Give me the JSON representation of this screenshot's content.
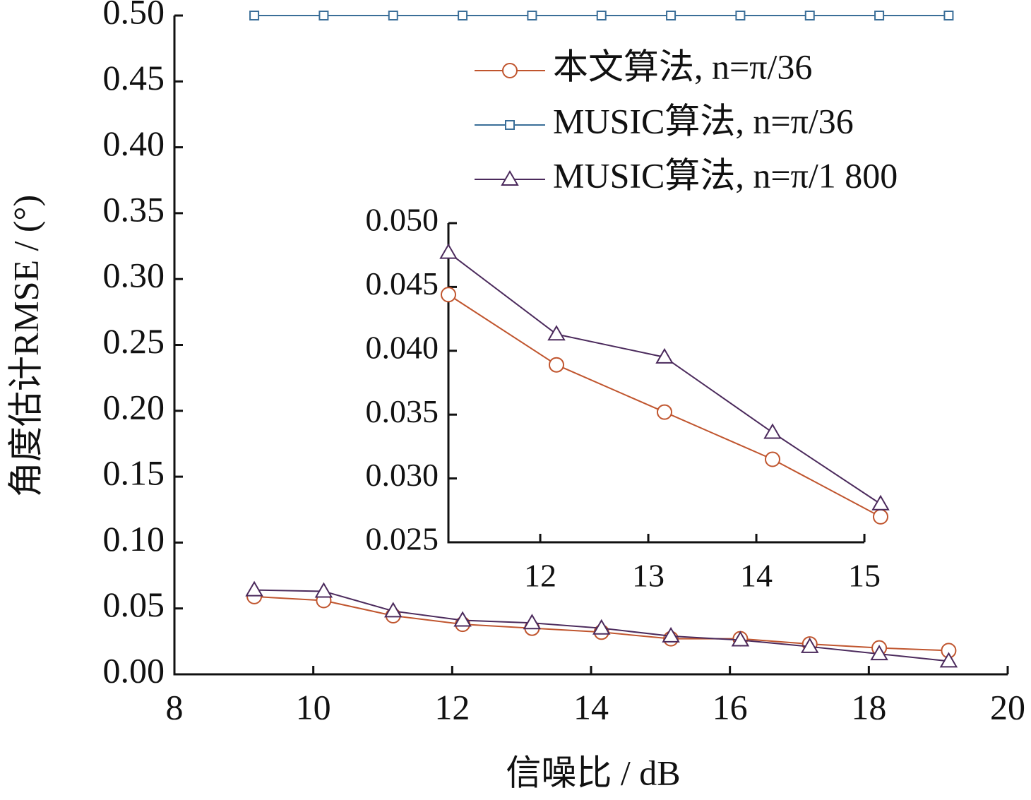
{
  "chart_data": [
    {
      "type": "line",
      "xlabel": "信噪比 / dB",
      "ylabel": "角度估计RMSE / (°)",
      "x": [
        9.15,
        10.15,
        11.15,
        12.15,
        13.15,
        14.15,
        15.15,
        16.15,
        17.15,
        18.15,
        19.15
      ],
      "xlim": [
        8,
        20
      ],
      "xticks": [
        8,
        10,
        12,
        14,
        16,
        18,
        20
      ],
      "ylim": [
        0,
        0.5
      ],
      "yticks": [
        {
          "value": 0,
          "label": "0.00"
        },
        {
          "value": 0.05,
          "label": "0.05"
        },
        {
          "value": 0.1,
          "label": "0.10"
        },
        {
          "value": 0.15,
          "label": "0.15"
        },
        {
          "value": 0.2,
          "label": "0.20"
        },
        {
          "value": 0.25,
          "label": "0.25"
        },
        {
          "value": 0.3,
          "label": "0.30"
        },
        {
          "value": 0.35,
          "label": "0.35"
        },
        {
          "value": 0.4,
          "label": "0.40"
        },
        {
          "value": 0.45,
          "label": "0.45"
        },
        {
          "value": 0.5,
          "label": "0.50"
        }
      ],
      "legend": "upper right",
      "series": [
        {
          "name": "本文算法, n=π/36",
          "color": "#c0552e",
          "marker": "circle",
          "values": [
            0.059,
            0.056,
            0.0445,
            0.038,
            0.035,
            0.032,
            0.027,
            0.027,
            0.023,
            0.02,
            0.018
          ]
        },
        {
          "name": "MUSIC算法, n=π/36",
          "color": "#3a6e98",
          "marker": "square",
          "values": [
            0.5,
            0.5,
            0.5,
            0.5,
            0.5,
            0.5,
            0.5,
            0.5,
            0.5,
            0.5,
            0.5
          ]
        },
        {
          "name": "MUSIC算法, n=π/1 800",
          "color": "#4b2a5c",
          "marker": "triangle",
          "values": [
            0.064,
            0.063,
            0.048,
            0.041,
            0.039,
            0.035,
            0.029,
            0.026,
            0.021,
            0.0155,
            0.01
          ]
        }
      ]
    },
    {
      "type": "line",
      "x": [
        11.15,
        12.15,
        13.15,
        14.15,
        15.15
      ],
      "xlim": [
        11.15,
        15.15
      ],
      "xticks": [
        12,
        13,
        14,
        15
      ],
      "ylim": [
        0.025,
        0.05
      ],
      "yticks": [
        0.025,
        {
          "value": 0.03,
          "label": "0.030"
        },
        0.035,
        {
          "value": 0.04,
          "label": "0.040"
        },
        0.045,
        {
          "value": 0.05,
          "label": "0.050"
        }
      ],
      "series": [
        {
          "color": "#c0552e",
          "marker": "circle",
          "values": [
            0.0444,
            0.0389,
            0.0352,
            0.0315,
            0.027
          ]
        },
        {
          "color": "#4b2a5c",
          "marker": "triangle",
          "values": [
            0.0477,
            0.0413,
            0.0395,
            0.0336,
            0.028
          ]
        }
      ]
    }
  ]
}
